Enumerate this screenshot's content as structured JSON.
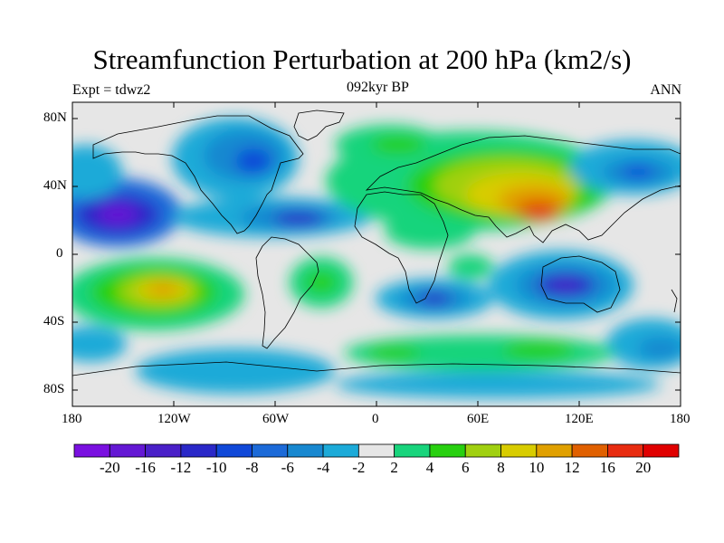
{
  "title": "Streamfunction Perturbation at 200 hPa (km2/s)",
  "left_label": "Expt = tdwz2",
  "center_label": "092kyr BP",
  "right_label": "ANN",
  "lat_ticks": [
    "80N",
    "40N",
    "0",
    "40S",
    "80S"
  ],
  "lon_ticks": [
    "180",
    "120W",
    "60W",
    "0",
    "60E",
    "120E",
    "180"
  ],
  "colorbar": {
    "labels": [
      "-20",
      "-16",
      "-12",
      "-10",
      "-8",
      "-6",
      "-4",
      "-2",
      "2",
      "4",
      "6",
      "8",
      "10",
      "12",
      "16",
      "20"
    ],
    "colors": [
      "#7a10e0",
      "#6418d4",
      "#4a20c8",
      "#2a28c8",
      "#1048d8",
      "#1c6ad8",
      "#1888d0",
      "#1caad8",
      "#e6e6e6",
      "#18d47c",
      "#28d010",
      "#a0d010",
      "#d8cc00",
      "#e0a000",
      "#e06000",
      "#e82c10",
      "#e00000"
    ]
  }
}
